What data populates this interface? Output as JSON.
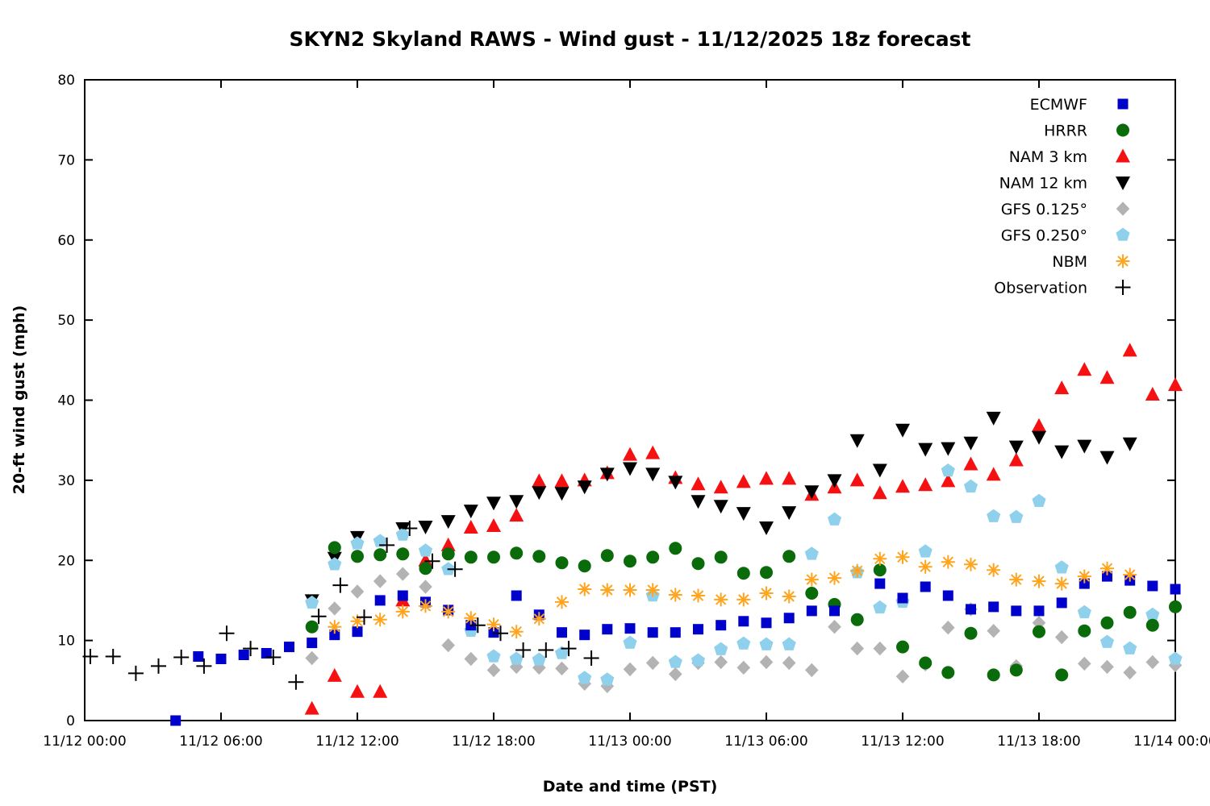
{
  "chart_data": {
    "type": "scatter",
    "title": "SKYN2 Skyland RAWS - Wind gust - 11/12/2025 18z forecast",
    "xlabel": "Date and time (PST)",
    "ylabel": "20-ft wind gust (mph)",
    "ylim": [
      0,
      80
    ],
    "y_tick_step": 10,
    "x_hours_range": [
      0,
      48
    ],
    "grid": false,
    "frame_color": "#000000",
    "legend_position": "top-right-inside",
    "x_ticks": [
      {
        "hour": 0,
        "label": "11/12 00:00"
      },
      {
        "hour": 6,
        "label": "11/12 06:00"
      },
      {
        "hour": 12,
        "label": "11/12 12:00"
      },
      {
        "hour": 18,
        "label": "11/12 18:00"
      },
      {
        "hour": 24,
        "label": "11/13 00:00"
      },
      {
        "hour": 30,
        "label": "11/13 06:00"
      },
      {
        "hour": 36,
        "label": "11/13 12:00"
      },
      {
        "hour": 42,
        "label": "11/13 18:00"
      },
      {
        "hour": 48,
        "label": "11/14 00:00"
      }
    ],
    "draw_order": [
      "NAM 3 km",
      "NAM 12 km",
      "GFS 0.125°",
      "GFS 0.250°",
      "HRRR",
      "ECMWF",
      "NBM",
      "Observation"
    ],
    "series": [
      {
        "name": "ECMWF",
        "marker": "filled-square",
        "color": "#0000cd",
        "points": [
          [
            4,
            0
          ],
          [
            5,
            8.0
          ],
          [
            6,
            7.7
          ],
          [
            7,
            8.2
          ],
          [
            8,
            8.4
          ],
          [
            9,
            9.2
          ],
          [
            10,
            9.7
          ],
          [
            11,
            10.7
          ],
          [
            12,
            11.1
          ],
          [
            13,
            15.0
          ],
          [
            14,
            15.6
          ],
          [
            15,
            14.8
          ],
          [
            16,
            13.8
          ],
          [
            17,
            11.9
          ],
          [
            18,
            11.0
          ],
          [
            19,
            15.6
          ],
          [
            20,
            13.2
          ],
          [
            21,
            11.0
          ],
          [
            22,
            10.7
          ],
          [
            23,
            11.4
          ],
          [
            24,
            11.5
          ],
          [
            25,
            11.0
          ],
          [
            26,
            11.0
          ],
          [
            27,
            11.4
          ],
          [
            28,
            11.9
          ],
          [
            29,
            12.4
          ],
          [
            30,
            12.2
          ],
          [
            31,
            12.8
          ],
          [
            32,
            13.7
          ],
          [
            33,
            13.7
          ],
          [
            35,
            17.1
          ],
          [
            36,
            15.3
          ],
          [
            37,
            16.7
          ],
          [
            38,
            15.6
          ],
          [
            39,
            13.9
          ],
          [
            40,
            14.2
          ],
          [
            41,
            13.7
          ],
          [
            42,
            13.7
          ],
          [
            43,
            14.7
          ],
          [
            44,
            17.1
          ],
          [
            45,
            18.0
          ],
          [
            46,
            17.5
          ],
          [
            47,
            16.8
          ],
          [
            48,
            16.4
          ]
        ]
      },
      {
        "name": "HRRR",
        "marker": "filled-circle",
        "color": "#0a6b0a",
        "points": [
          [
            10,
            11.7
          ],
          [
            11,
            21.6
          ],
          [
            12,
            20.5
          ],
          [
            13,
            20.7
          ],
          [
            14,
            20.8
          ],
          [
            15,
            19.0
          ],
          [
            16,
            20.8
          ],
          [
            17,
            20.4
          ],
          [
            18,
            20.4
          ],
          [
            19,
            20.9
          ],
          [
            20,
            20.5
          ],
          [
            21,
            19.7
          ],
          [
            22,
            19.3
          ],
          [
            23,
            20.6
          ],
          [
            24,
            19.9
          ],
          [
            25,
            20.4
          ],
          [
            26,
            21.5
          ],
          [
            27,
            19.6
          ],
          [
            28,
            20.4
          ],
          [
            29,
            18.4
          ],
          [
            30,
            18.5
          ],
          [
            31,
            20.5
          ],
          [
            32,
            15.9
          ],
          [
            33,
            14.5
          ],
          [
            34,
            12.6
          ],
          [
            35,
            18.8
          ],
          [
            36,
            9.2
          ],
          [
            37,
            7.2
          ],
          [
            38,
            6.0
          ],
          [
            39,
            10.9
          ],
          [
            40,
            5.7
          ],
          [
            41,
            6.3
          ],
          [
            42,
            11.1
          ],
          [
            43,
            5.7
          ],
          [
            44,
            11.2
          ],
          [
            45,
            12.2
          ],
          [
            46,
            13.5
          ],
          [
            47,
            11.9
          ],
          [
            48,
            14.2
          ]
        ]
      },
      {
        "name": "NAM 3 km",
        "marker": "triangle-up",
        "color": "#f51111",
        "points": [
          [
            10,
            1.5
          ],
          [
            11,
            5.6
          ],
          [
            12,
            3.6
          ],
          [
            13,
            3.6
          ],
          [
            14,
            15.0
          ],
          [
            15,
            20.0
          ],
          [
            16,
            21.9
          ],
          [
            17,
            24.1
          ],
          [
            18,
            24.3
          ],
          [
            19,
            25.6
          ],
          [
            20,
            29.9
          ],
          [
            21,
            29.9
          ],
          [
            22,
            30.0
          ],
          [
            23,
            30.9
          ],
          [
            24,
            33.2
          ],
          [
            25,
            33.4
          ],
          [
            26,
            30.3
          ],
          [
            27,
            29.5
          ],
          [
            28,
            29.1
          ],
          [
            29,
            29.8
          ],
          [
            30,
            30.2
          ],
          [
            31,
            30.2
          ],
          [
            32,
            28.2
          ],
          [
            33,
            29.1
          ],
          [
            34,
            30.0
          ],
          [
            35,
            28.4
          ],
          [
            36,
            29.2
          ],
          [
            37,
            29.4
          ],
          [
            38,
            29.9
          ],
          [
            39,
            32.0
          ],
          [
            40,
            30.7
          ],
          [
            41,
            32.5
          ],
          [
            42,
            36.8
          ],
          [
            43,
            41.5
          ],
          [
            44,
            43.8
          ],
          [
            45,
            42.8
          ],
          [
            46,
            46.2
          ],
          [
            47,
            40.7
          ],
          [
            48,
            41.9
          ]
        ]
      },
      {
        "name": "NAM 12 km",
        "marker": "triangle-down",
        "color": "#000000",
        "points": [
          [
            10,
            15.0
          ],
          [
            11,
            20.3
          ],
          [
            12,
            22.9
          ],
          [
            14,
            24.0
          ],
          [
            15,
            24.2
          ],
          [
            16,
            24.9
          ],
          [
            17,
            26.2
          ],
          [
            18,
            27.2
          ],
          [
            19,
            27.4
          ],
          [
            20,
            28.5
          ],
          [
            21,
            28.4
          ],
          [
            22,
            29.2
          ],
          [
            23,
            30.8
          ],
          [
            24,
            31.5
          ],
          [
            25,
            30.8
          ],
          [
            26,
            29.8
          ],
          [
            27,
            27.4
          ],
          [
            28,
            26.8
          ],
          [
            29,
            25.9
          ],
          [
            30,
            24.1
          ],
          [
            31,
            26.0
          ],
          [
            32,
            28.6
          ],
          [
            33,
            30.0
          ],
          [
            34,
            35.0
          ],
          [
            35,
            31.3
          ],
          [
            36,
            36.3
          ],
          [
            37,
            33.9
          ],
          [
            38,
            34.0
          ],
          [
            39,
            34.7
          ],
          [
            40,
            37.8
          ],
          [
            41,
            34.2
          ],
          [
            42,
            35.4
          ],
          [
            43,
            33.6
          ],
          [
            44,
            34.3
          ],
          [
            45,
            32.9
          ],
          [
            46,
            34.6
          ]
        ]
      },
      {
        "name": "GFS 0.125°",
        "marker": "filled-diamond",
        "color": "#b3b3b3",
        "points": [
          [
            10,
            7.8
          ],
          [
            11,
            14.0
          ],
          [
            12,
            16.1
          ],
          [
            13,
            17.4
          ],
          [
            14,
            18.3
          ],
          [
            15,
            16.7
          ],
          [
            16,
            9.4
          ],
          [
            17,
            7.7
          ],
          [
            18,
            6.3
          ],
          [
            19,
            6.7
          ],
          [
            20,
            6.6
          ],
          [
            21,
            6.5
          ],
          [
            22,
            4.6
          ],
          [
            23,
            4.3
          ],
          [
            24,
            6.4
          ],
          [
            25,
            7.2
          ],
          [
            26,
            5.8
          ],
          [
            27,
            7.2
          ],
          [
            28,
            7.3
          ],
          [
            29,
            6.6
          ],
          [
            30,
            7.3
          ],
          [
            31,
            7.2
          ],
          [
            32,
            6.3
          ],
          [
            33,
            11.7
          ],
          [
            34,
            9.0
          ],
          [
            35,
            9.0
          ],
          [
            36,
            5.5
          ],
          [
            37,
            7.0
          ],
          [
            38,
            11.6
          ],
          [
            39,
            13.9
          ],
          [
            40,
            11.2
          ],
          [
            41,
            6.8
          ],
          [
            42,
            12.2
          ],
          [
            43,
            10.4
          ],
          [
            44,
            7.1
          ],
          [
            45,
            6.7
          ],
          [
            46,
            6.0
          ],
          [
            47,
            7.3
          ],
          [
            48,
            6.9
          ]
        ]
      },
      {
        "name": "GFS 0.250°",
        "marker": "filled-pentagon",
        "color": "#8fd0ec",
        "points": [
          [
            10,
            14.7
          ],
          [
            11,
            19.5
          ],
          [
            12,
            22.1
          ],
          [
            13,
            22.4
          ],
          [
            14,
            23.2
          ],
          [
            15,
            21.2
          ],
          [
            16,
            18.9
          ],
          [
            17,
            11.2
          ],
          [
            18,
            8.0
          ],
          [
            19,
            7.7
          ],
          [
            20,
            7.6
          ],
          [
            21,
            8.4
          ],
          [
            22,
            5.3
          ],
          [
            23,
            5.1
          ],
          [
            24,
            9.7
          ],
          [
            25,
            15.6
          ],
          [
            26,
            7.3
          ],
          [
            27,
            7.5
          ],
          [
            28,
            8.9
          ],
          [
            29,
            9.6
          ],
          [
            30,
            9.5
          ],
          [
            31,
            9.5
          ],
          [
            32,
            20.8
          ],
          [
            33,
            25.1
          ],
          [
            34,
            18.5
          ],
          [
            35,
            14.1
          ],
          [
            36,
            14.8
          ],
          [
            37,
            21.1
          ],
          [
            38,
            31.2
          ],
          [
            39,
            29.2
          ],
          [
            40,
            25.5
          ],
          [
            41,
            25.4
          ],
          [
            42,
            27.4
          ],
          [
            43,
            19.1
          ],
          [
            44,
            13.5
          ],
          [
            45,
            9.8
          ],
          [
            46,
            9.0
          ],
          [
            47,
            13.2
          ],
          [
            48,
            7.7
          ]
        ]
      },
      {
        "name": "NBM",
        "marker": "asterisk",
        "color": "#ffa41c",
        "points": [
          [
            11,
            11.7
          ],
          [
            12,
            12.4
          ],
          [
            13,
            12.6
          ],
          [
            14,
            13.6
          ],
          [
            15,
            14.3
          ],
          [
            16,
            13.6
          ],
          [
            17,
            12.8
          ],
          [
            18,
            12.0
          ],
          [
            19,
            11.1
          ],
          [
            20,
            12.7
          ],
          [
            21,
            14.8
          ],
          [
            22,
            16.4
          ],
          [
            23,
            16.3
          ],
          [
            24,
            16.3
          ],
          [
            25,
            16.3
          ],
          [
            26,
            15.7
          ],
          [
            27,
            15.6
          ],
          [
            28,
            15.1
          ],
          [
            29,
            15.1
          ],
          [
            30,
            15.9
          ],
          [
            31,
            15.5
          ],
          [
            32,
            17.6
          ],
          [
            33,
            17.8
          ],
          [
            34,
            18.7
          ],
          [
            35,
            20.2
          ],
          [
            36,
            20.4
          ],
          [
            37,
            19.2
          ],
          [
            38,
            19.8
          ],
          [
            39,
            19.5
          ],
          [
            40,
            18.8
          ],
          [
            41,
            17.6
          ],
          [
            42,
            17.4
          ],
          [
            43,
            17.1
          ],
          [
            44,
            18.0
          ],
          [
            45,
            19.0
          ],
          [
            46,
            18.2
          ]
        ]
      },
      {
        "name": "Observation",
        "marker": "plus",
        "color": "#000000",
        "points": [
          [
            0.25,
            8.0
          ],
          [
            1.25,
            8.0
          ],
          [
            2.25,
            5.9
          ],
          [
            3.25,
            6.8
          ],
          [
            4.25,
            7.9
          ],
          [
            5.25,
            6.8
          ],
          [
            6.25,
            10.9
          ],
          [
            7.3,
            9.0
          ],
          [
            8.3,
            7.9
          ],
          [
            9.3,
            4.8
          ],
          [
            10.3,
            13.0
          ],
          [
            11.25,
            16.9
          ],
          [
            12.3,
            12.9
          ],
          [
            13.3,
            21.9
          ],
          [
            14.3,
            24.0
          ],
          [
            15.3,
            19.9
          ],
          [
            16.3,
            18.9
          ],
          [
            17.3,
            11.9
          ],
          [
            18.3,
            10.9
          ],
          [
            19.3,
            8.8
          ],
          [
            20.3,
            8.8
          ],
          [
            21.3,
            9.0
          ],
          [
            22.3,
            7.8
          ]
        ]
      }
    ]
  }
}
